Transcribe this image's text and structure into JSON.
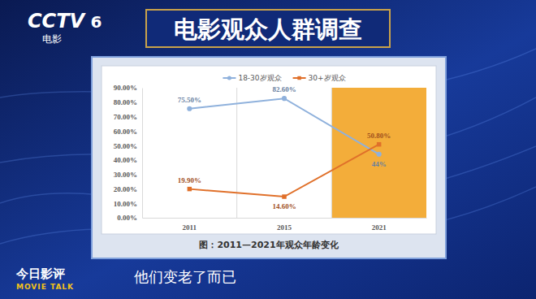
{
  "header": {
    "channel": "CCTV",
    "channel_number": "6",
    "channel_name": "电影"
  },
  "chart_data": {
    "type": "line",
    "title": "电影观众人群调查",
    "caption": "图：2011—2021年观众年龄变化",
    "categories": [
      "2011",
      "2015",
      "2021"
    ],
    "series": [
      {
        "name": "18-30岁观众",
        "color": "#8fb1dc",
        "marker": "circle",
        "line_style": "solid",
        "values": [
          75.5,
          82.6,
          44
        ],
        "value_labels": [
          "75.50%",
          "82.60%",
          "44%"
        ]
      },
      {
        "name": "30+岁观众",
        "color": "#e0702a",
        "marker": "square",
        "line_style": "solid",
        "values": [
          19.9,
          14.6,
          50.8
        ],
        "value_labels": [
          "19.90%",
          "14.60%",
          "50.80%"
        ]
      }
    ],
    "ylim": [
      0,
      90
    ],
    "yticks": [
      {
        "value": 0,
        "label": "0.00%"
      },
      {
        "value": 10,
        "label": "10.00%"
      },
      {
        "value": 20,
        "label": "20.00%"
      },
      {
        "value": 30,
        "label": "30.00%"
      },
      {
        "value": 40,
        "label": "40.00%"
      },
      {
        "value": 50,
        "label": "50.00%"
      },
      {
        "value": 60,
        "label": "60.00%"
      },
      {
        "value": 70,
        "label": "70.00%"
      },
      {
        "value": 80,
        "label": "80.00%"
      },
      {
        "value": 90,
        "label": "90.00%"
      }
    ],
    "grid": false,
    "legend": "top",
    "data_labels": true
  },
  "footer": {
    "program": "今日影评",
    "program_en": "MOVIE TALK",
    "subtitle": "他们变老了而已"
  }
}
